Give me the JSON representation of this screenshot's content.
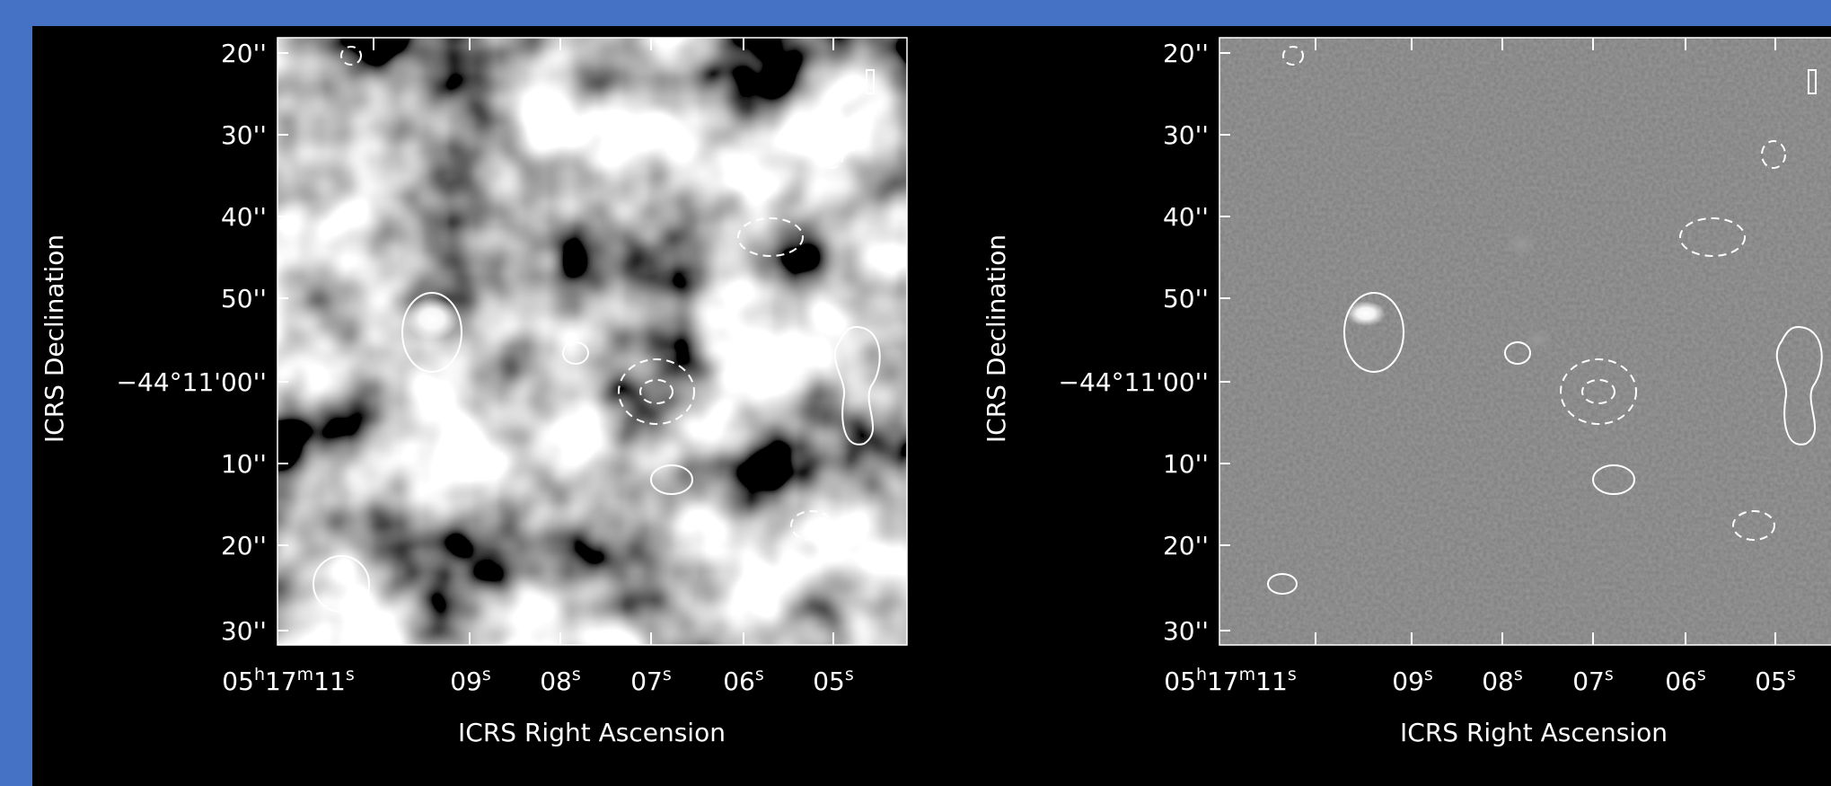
{
  "panels": [
    {
      "y_axis_label": "ICRS Declination",
      "x_axis_label": "ICRS Right Ascension",
      "y_tick_labels": [
        "20''",
        "30''",
        "40''",
        "50''",
        "−44°11'00''",
        "10''",
        "20''",
        "30''"
      ],
      "x_tick_labels": [
        "05h17m11s",
        "09s",
        "08s",
        "07s",
        "06s",
        "05s"
      ]
    },
    {
      "y_axis_label": "ICRS Declination",
      "x_axis_label": "ICRS Right Ascension",
      "y_tick_labels": [
        "20''",
        "30''",
        "40''",
        "50''",
        "−44°11'00''",
        "10''",
        "20''",
        "30''"
      ],
      "x_tick_labels": [
        "05h17m11s",
        "09s",
        "08s",
        "07s",
        "06s",
        "05s"
      ]
    }
  ]
}
